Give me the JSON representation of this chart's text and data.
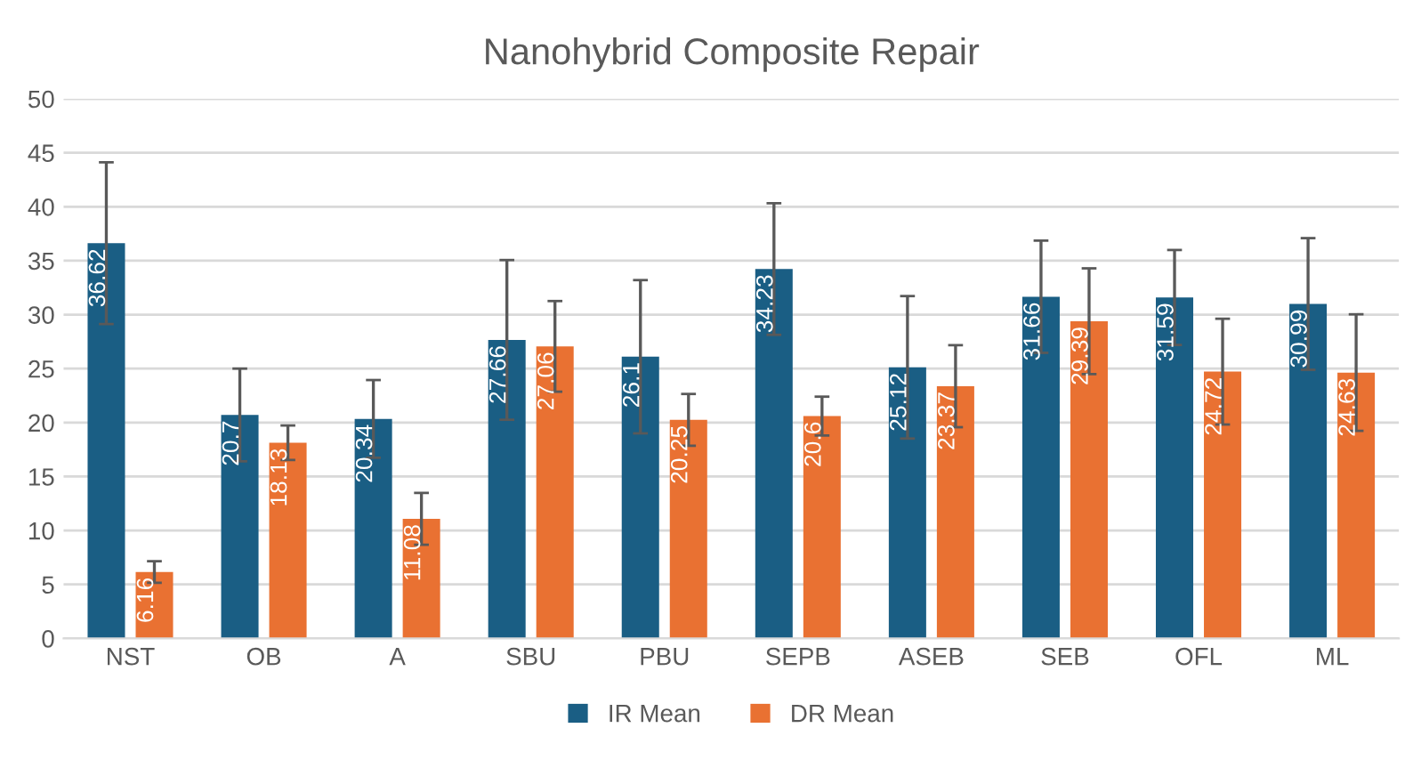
{
  "chart_data": {
    "type": "bar",
    "title": "Nanohybrid Composite Repair",
    "categories": [
      "NST",
      "OB",
      "A",
      "SBU",
      "PBU",
      "SEPB",
      "ASEB",
      "SEB",
      "OFL",
      "ML"
    ],
    "series": [
      {
        "name": "IR Mean",
        "color": "#1a5e84",
        "values": [
          36.62,
          20.7,
          20.34,
          27.66,
          26.1,
          34.23,
          25.12,
          31.66,
          31.59,
          30.99
        ],
        "errors": [
          7.5,
          4.3,
          3.6,
          7.4,
          7.1,
          6.1,
          6.6,
          5.2,
          4.4,
          6.1
        ]
      },
      {
        "name": "DR Mean",
        "color": "#e97132",
        "values": [
          6.16,
          18.13,
          11.08,
          27.06,
          20.25,
          20.6,
          23.37,
          29.39,
          24.72,
          24.63
        ],
        "errors": [
          1.0,
          1.6,
          2.4,
          4.2,
          2.4,
          1.8,
          3.8,
          4.9,
          4.9,
          5.4
        ]
      }
    ],
    "ylim": [
      0,
      50
    ],
    "yticks": [
      0,
      5,
      10,
      15,
      20,
      25,
      30,
      35,
      40,
      45,
      50
    ],
    "grid": "y",
    "legend": "bottom",
    "data_labels": true
  }
}
